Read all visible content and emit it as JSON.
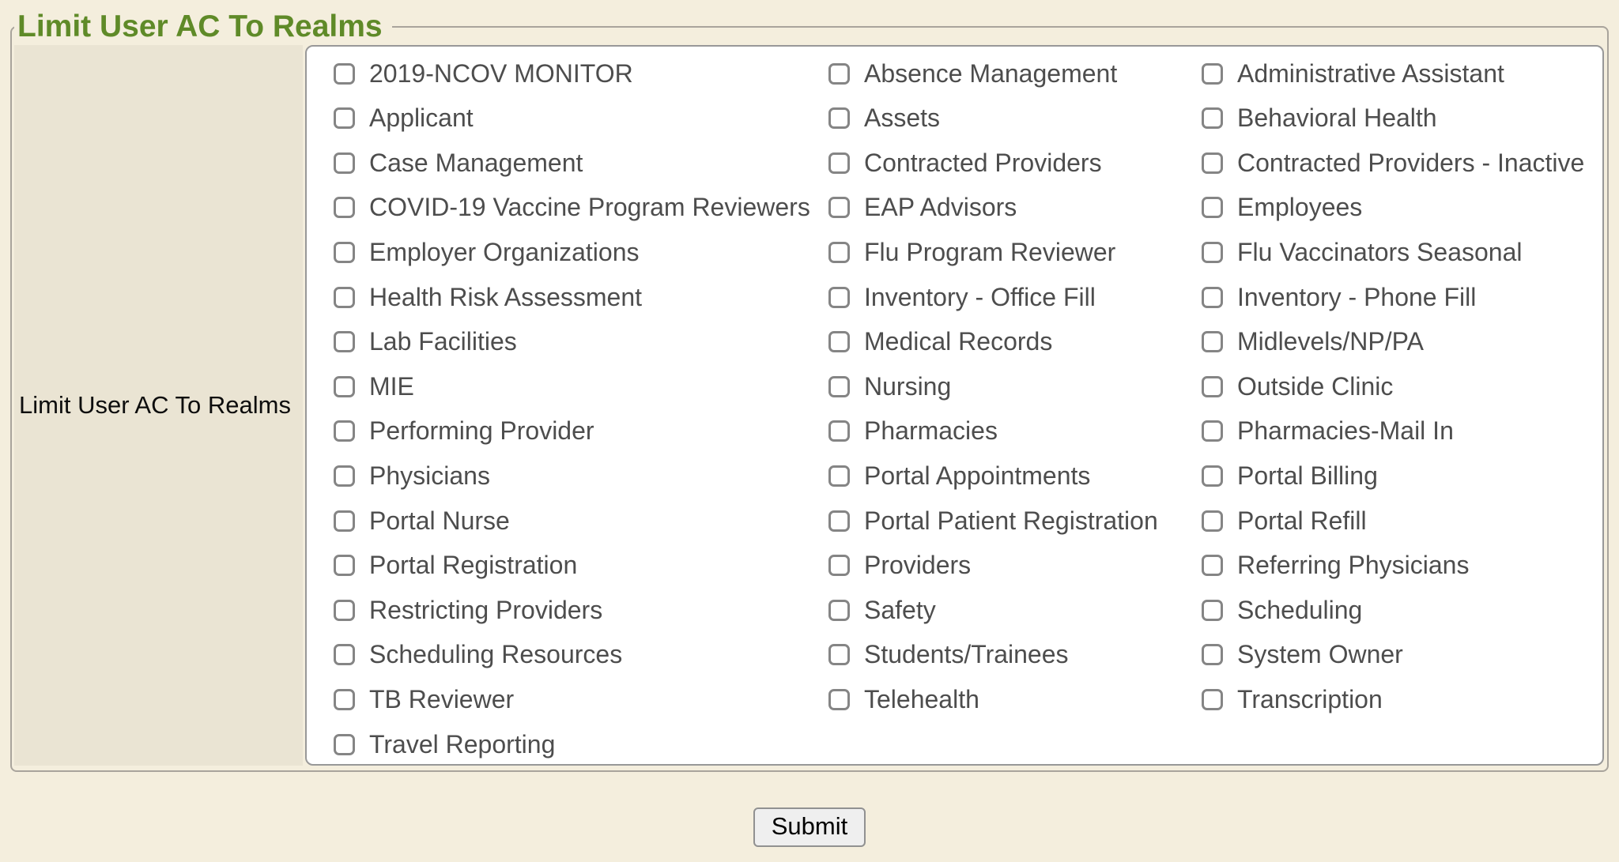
{
  "page": {
    "background_color": "#f4eedd",
    "accent_green": "#5f8a28"
  },
  "fieldset": {
    "legend": "Limit User AC To Realms",
    "row_label": "Limit User AC To Realms",
    "checkbox_checked": false,
    "columns": [
      {
        "items": [
          "2019-NCOV MONITOR",
          "Applicant",
          "Case Management",
          "COVID-19 Vaccine Program Reviewers",
          "Employer Organizations",
          "Health Risk Assessment",
          "Lab Facilities",
          "MIE",
          "Performing Provider",
          "Physicians",
          "Portal Nurse",
          "Portal Registration",
          "Restricting Providers",
          "Scheduling Resources",
          "TB Reviewer",
          "Travel Reporting"
        ]
      },
      {
        "items": [
          "Absence Management",
          "Assets",
          "Contracted Providers",
          "EAP Advisors",
          "Flu Program Reviewer",
          "Inventory - Office Fill",
          "Medical Records",
          "Nursing",
          "Pharmacies",
          "Portal Appointments",
          "Portal Patient Registration",
          "Providers",
          "Safety",
          "Students/Trainees",
          "Telehealth"
        ]
      },
      {
        "items": [
          "Administrative Assistant",
          "Behavioral Health",
          "Contracted Providers - Inactive",
          "Employees",
          "Flu Vaccinators Seasonal",
          "Inventory - Phone Fill",
          "Midlevels/NP/PA",
          "Outside Clinic",
          "Pharmacies-Mail In",
          "Portal Billing",
          "Portal Refill",
          "Referring Physicians",
          "Scheduling",
          "System Owner",
          "Transcription"
        ]
      }
    ]
  },
  "submit": {
    "label": "Submit"
  }
}
